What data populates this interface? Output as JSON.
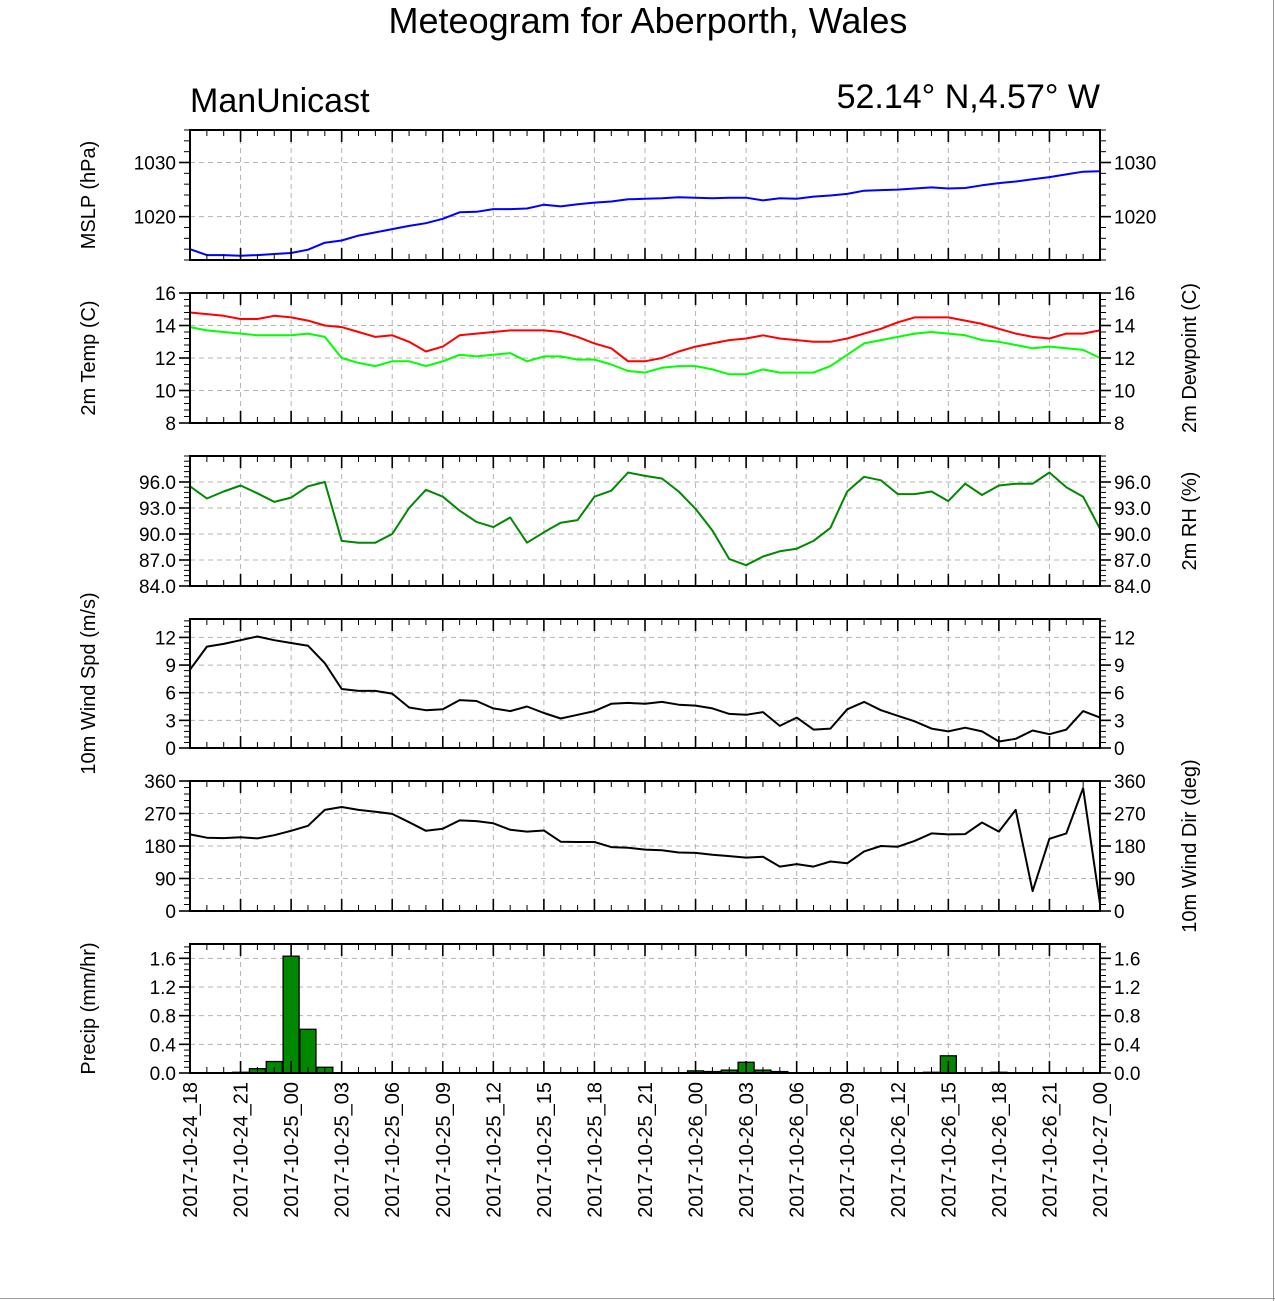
{
  "header": {
    "title": "Meteogram for Aberporth, Wales",
    "model": "ManUnicast",
    "location": "52.14° N,4.57° W"
  },
  "time_labels": [
    "2017-10-24_18",
    "2017-10-24_21",
    "2017-10-25_00",
    "2017-10-25_03",
    "2017-10-25_06",
    "2017-10-25_09",
    "2017-10-25_12",
    "2017-10-25_15",
    "2017-10-25_18",
    "2017-10-25_21",
    "2017-10-26_00",
    "2017-10-26_03",
    "2017-10-26_06",
    "2017-10-26_09",
    "2017-10-26_12",
    "2017-10-26_15",
    "2017-10-26_18",
    "2017-10-26_21",
    "2017-10-27_00"
  ],
  "colors": {
    "mslp": "#0000ff",
    "temp": "#ff0000",
    "dewpoint": "#00ff00",
    "rh": "#008800",
    "wind": "#000000",
    "precip_fill": "#008800",
    "grid": "#b4b4b4"
  },
  "chart_data": [
    {
      "type": "line",
      "panel": "mslp",
      "ylabel": "MSLP (hPa)",
      "ylim": [
        1012,
        1036
      ],
      "ticks": [
        1020,
        1030
      ],
      "tick_labels": [
        "1020",
        "1030"
      ],
      "right_tick_labels": [
        "1020",
        "1030"
      ],
      "grid": true,
      "x": [
        0,
        1,
        2,
        3,
        4,
        5,
        6,
        7,
        8,
        9,
        10,
        11,
        12,
        13,
        14,
        15,
        16,
        17,
        18,
        19,
        20,
        21,
        22,
        23,
        24,
        25,
        26,
        27,
        28,
        29,
        30,
        31,
        32,
        33,
        34,
        35,
        36,
        37,
        38,
        39,
        40,
        41,
        42,
        43,
        44,
        45,
        46,
        47,
        48,
        49,
        50,
        51,
        52,
        53,
        54
      ],
      "x_units": "hours after 2017-10-24_18",
      "series": [
        {
          "color": "#0000ff",
          "values": [
            1014.0,
            1012.9,
            1012.9,
            1012.8,
            1012.9,
            1013.1,
            1013.3,
            1013.9,
            1015.2,
            1015.6,
            1016.5,
            1017.1,
            1017.7,
            1018.3,
            1018.8,
            1019.6,
            1020.8,
            1020.9,
            1021.4,
            1021.4,
            1021.5,
            1022.2,
            1021.9,
            1022.3,
            1022.6,
            1022.8,
            1023.2,
            1023.3,
            1023.4,
            1023.6,
            1023.5,
            1023.4,
            1023.5,
            1023.5,
            1023.0,
            1023.4,
            1023.3,
            1023.7,
            1023.9,
            1024.2,
            1024.8,
            1024.9,
            1025.0,
            1025.2,
            1025.4,
            1025.2,
            1025.3,
            1025.8,
            1026.2,
            1026.5,
            1026.9,
            1027.3,
            1027.8,
            1028.3,
            1028.4
          ]
        }
      ]
    },
    {
      "type": "line",
      "panel": "temperature",
      "ylabel": "2m Temp (C)",
      "ylabel_right": "2m Dewpoint (C)",
      "ylim": [
        8,
        16
      ],
      "ticks": [
        8,
        10,
        12,
        14,
        16
      ],
      "tick_labels": [
        "8",
        "10",
        "12",
        "14",
        "16"
      ],
      "right_tick_labels": [
        "8",
        "10",
        "12",
        "14",
        "16"
      ],
      "grid": true,
      "series": [
        {
          "color": "#ff0000",
          "values": [
            14.8,
            14.7,
            14.6,
            14.4,
            14.4,
            14.6,
            14.5,
            14.3,
            14.0,
            13.9,
            13.6,
            13.3,
            13.4,
            13.0,
            12.4,
            12.7,
            13.4,
            13.5,
            13.6,
            13.7,
            13.7,
            13.7,
            13.6,
            13.3,
            12.9,
            12.6,
            11.8,
            11.8,
            12.0,
            12.4,
            12.7,
            12.9,
            13.1,
            13.2,
            13.4,
            13.2,
            13.1,
            13.0,
            13.0,
            13.2,
            13.5,
            13.8,
            14.2,
            14.5,
            14.5,
            14.5,
            14.3,
            14.1,
            13.8,
            13.5,
            13.3,
            13.2,
            13.5,
            13.5,
            13.7
          ]
        },
        {
          "color": "#00ff00",
          "values": [
            13.9,
            13.7,
            13.6,
            13.5,
            13.4,
            13.4,
            13.4,
            13.5,
            13.3,
            12.0,
            11.7,
            11.5,
            11.8,
            11.8,
            11.5,
            11.8,
            12.2,
            12.1,
            12.2,
            12.3,
            11.8,
            12.1,
            12.1,
            11.9,
            11.9,
            11.6,
            11.2,
            11.1,
            11.4,
            11.5,
            11.5,
            11.3,
            11.0,
            11.0,
            11.3,
            11.1,
            11.1,
            11.1,
            11.5,
            12.2,
            12.9,
            13.1,
            13.3,
            13.5,
            13.6,
            13.5,
            13.4,
            13.1,
            13.0,
            12.8,
            12.6,
            12.7,
            12.6,
            12.5,
            12.0
          ]
        }
      ]
    },
    {
      "type": "line",
      "panel": "relative_humidity",
      "ylabel_right": "2m RH (%)",
      "ylim": [
        84,
        99
      ],
      "ticks": [
        84,
        87,
        90,
        93,
        96
      ],
      "tick_labels": [
        "84.0",
        "87.0",
        "90.0",
        "93.0",
        "96.0"
      ],
      "right_tick_labels": [
        "84.0",
        "87.0",
        "90.0",
        "93.0",
        "96.0"
      ],
      "grid": true,
      "series": [
        {
          "color": "#008800",
          "values": [
            95.5,
            94.1,
            94.9,
            95.6,
            94.7,
            93.7,
            94.2,
            95.5,
            96.0,
            89.2,
            89.0,
            89.0,
            90.0,
            93.0,
            95.1,
            94.3,
            92.7,
            91.4,
            90.8,
            91.9,
            89.0,
            90.2,
            91.3,
            91.6,
            94.3,
            95.0,
            97.1,
            96.7,
            96.4,
            94.9,
            92.9,
            90.4,
            87.1,
            86.4,
            87.4,
            88.0,
            88.3,
            89.2,
            90.7,
            94.9,
            96.6,
            96.2,
            94.6,
            94.6,
            94.9,
            93.8,
            95.8,
            94.5,
            95.6,
            95.8,
            95.8,
            97.1,
            95.4,
            94.3,
            90.6
          ]
        }
      ]
    },
    {
      "type": "line",
      "panel": "wind_speed",
      "ylabel": "10m Wind Spd (m/s)",
      "ylim": [
        0,
        14
      ],
      "ticks": [
        0,
        3,
        6,
        9,
        12
      ],
      "tick_labels": [
        "0",
        "3",
        "6",
        "9",
        "12"
      ],
      "right_tick_labels": [
        "0",
        "3",
        "6",
        "9",
        "12"
      ],
      "grid": true,
      "series": [
        {
          "color": "#000000",
          "values": [
            8.5,
            11.0,
            11.3,
            11.7,
            12.1,
            11.7,
            11.4,
            11.1,
            9.2,
            6.4,
            6.2,
            6.2,
            5.9,
            4.4,
            4.1,
            4.2,
            5.2,
            5.1,
            4.3,
            4.0,
            4.5,
            3.8,
            3.2,
            3.6,
            4.0,
            4.8,
            4.9,
            4.8,
            5.0,
            4.7,
            4.6,
            4.3,
            3.7,
            3.6,
            3.9,
            2.4,
            3.3,
            2.0,
            2.1,
            4.2,
            5.0,
            4.1,
            3.5,
            2.9,
            2.1,
            1.8,
            2.2,
            1.8,
            0.7,
            1.0,
            1.9,
            1.5,
            2.0,
            4.0,
            3.3
          ]
        }
      ]
    },
    {
      "type": "line",
      "panel": "wind_direction",
      "ylabel_right": "10m Wind Dir (deg)",
      "ylim": [
        0,
        360
      ],
      "ticks": [
        0,
        90,
        180,
        270,
        360
      ],
      "tick_labels": [
        "0",
        "90",
        "180",
        "270",
        "360"
      ],
      "right_tick_labels": [
        "0",
        "90",
        "180",
        "270",
        "360"
      ],
      "grid": true,
      "series": [
        {
          "color": "#000000",
          "values": [
            212,
            203,
            202,
            204,
            201,
            210,
            222,
            236,
            280,
            288,
            280,
            275,
            269,
            246,
            222,
            228,
            251,
            249,
            243,
            225,
            220,
            223,
            192,
            191,
            191,
            177,
            175,
            170,
            168,
            162,
            161,
            156,
            152,
            148,
            150,
            123,
            130,
            123,
            137,
            132,
            165,
            180,
            178,
            194,
            215,
            212,
            213,
            245,
            220,
            280,
            55,
            200,
            215,
            340,
            20
          ]
        }
      ]
    },
    {
      "type": "bar",
      "panel": "precipitation",
      "ylabel": "Precip (mm/hr)",
      "ylim": [
        0,
        1.8
      ],
      "ticks": [
        0,
        0.4,
        0.8,
        1.2,
        1.6
      ],
      "tick_labels": [
        "0.0",
        "0.4",
        "0.8",
        "1.2",
        "1.6"
      ],
      "right_tick_labels": [
        "0.0",
        "0.4",
        "0.8",
        "1.2",
        "1.6"
      ],
      "grid": true,
      "bar_color": "#008800",
      "values": [
        0,
        0,
        0,
        0.01,
        0.06,
        0.16,
        1.63,
        0.61,
        0.08,
        0,
        0,
        0,
        0,
        0,
        0,
        0,
        0,
        0,
        0,
        0,
        0,
        0,
        0,
        0,
        0,
        0,
        0,
        0,
        0,
        0,
        0.03,
        0.02,
        0.04,
        0.15,
        0.04,
        0.02,
        0,
        0,
        0,
        0,
        0,
        0,
        0,
        0,
        0.01,
        0.24,
        0,
        0,
        0.01,
        0,
        0,
        0,
        0,
        0,
        0
      ]
    }
  ]
}
